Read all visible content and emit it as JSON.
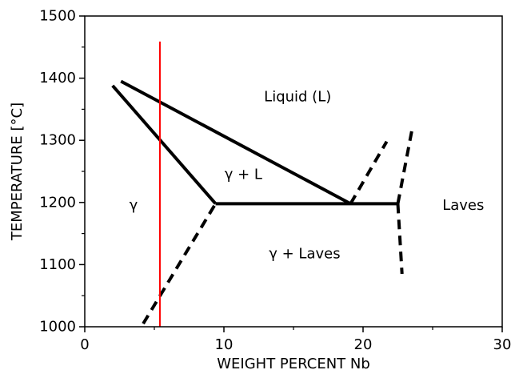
{
  "chart_data": {
    "type": "line",
    "title": "",
    "xlabel": "WEIGHT PERCENT Nb",
    "ylabel": "TEMPERATURE [°C]",
    "xlim": [
      0,
      30
    ],
    "ylim": [
      1000,
      1500
    ],
    "x_ticks": [
      0,
      10,
      20,
      30
    ],
    "x_tick_labels": [
      "0",
      "10",
      "20",
      "30"
    ],
    "x_minor_ticks": [
      5,
      15,
      25
    ],
    "y_ticks": [
      1000,
      1100,
      1200,
      1300,
      1400,
      1500
    ],
    "y_tick_labels": [
      "1000",
      "1100",
      "1200",
      "1300",
      "1400",
      "1500"
    ],
    "y_minor_ticks": [
      1050,
      1150,
      1250,
      1350,
      1450
    ],
    "grid": false,
    "colors": {
      "lines": "#000000",
      "marker": "#ff0000"
    },
    "series": [
      {
        "style": "solid",
        "x": [
          2.6,
          19.1
        ],
        "y": [
          1395,
          1198
        ]
      },
      {
        "style": "solid",
        "x": [
          2.0,
          9.4
        ],
        "y": [
          1388,
          1198
        ]
      },
      {
        "style": "solid",
        "x": [
          9.4,
          22.5
        ],
        "y": [
          1198,
          1198
        ]
      },
      {
        "style": "dashed",
        "x": [
          4.2,
          9.4
        ],
        "y": [
          1005,
          1198
        ]
      },
      {
        "style": "dashed",
        "x": [
          19.1,
          21.7
        ],
        "y": [
          1198,
          1298
        ]
      },
      {
        "style": "dashed",
        "x": [
          22.5,
          23.5
        ],
        "y": [
          1198,
          1315
        ]
      },
      {
        "style": "dashed",
        "x": [
          22.5,
          22.8
        ],
        "y": [
          1198,
          1085
        ]
      }
    ],
    "vline": {
      "x": 5.4,
      "y_range": [
        1000,
        1459
      ],
      "color": "#ff0000"
    },
    "annotations": [
      {
        "text": "Liquid (L)",
        "x": 15.3,
        "y": 1370
      },
      {
        "text": "γ + L",
        "x": 11.4,
        "y": 1245
      },
      {
        "text": "γ",
        "x": 3.5,
        "y": 1195
      },
      {
        "text": "Laves",
        "x": 27.2,
        "y": 1195
      },
      {
        "text": "γ + Laves",
        "x": 15.8,
        "y": 1117
      }
    ]
  }
}
